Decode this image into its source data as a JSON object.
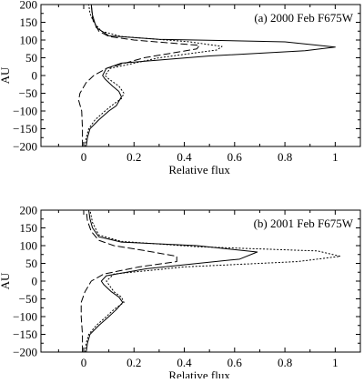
{
  "chart_data": [
    {
      "type": "line",
      "title": "(a) 2000 Feb F675W",
      "xlabel": "Relative flux",
      "ylabel": "AU",
      "xlim": [
        -0.17,
        1.1
      ],
      "ylim": [
        -200,
        200
      ],
      "xticks": [
        0,
        0.2,
        0.4,
        0.6,
        0.8,
        1
      ],
      "xtick_labels": [
        "0",
        "0.2",
        "0.4",
        "0.6",
        "0.8",
        "1"
      ],
      "yticks": [
        -200,
        -150,
        -100,
        -50,
        0,
        50,
        100,
        150,
        200
      ],
      "ytick_labels": [
        "−200",
        "−150",
        "−100",
        "−50",
        "0",
        "50",
        "100",
        "150",
        "200"
      ],
      "grid": false,
      "series": [
        {
          "style": "solid",
          "x": [
            0.01,
            0.015,
            0.025,
            0.06,
            0.1,
            0.13,
            0.15,
            0.14,
            0.115,
            0.085,
            0.075,
            0.09,
            0.15,
            0.5,
            0.88,
            1.0,
            0.8,
            0.3,
            0.1,
            0.05,
            0.035,
            0.03
          ],
          "y": [
            -200,
            -175,
            -150,
            -125,
            -100,
            -85,
            -60,
            -45,
            -30,
            -10,
            0,
            20,
            35,
            55,
            70,
            80,
            95,
            102,
            112,
            135,
            170,
            200
          ]
        },
        {
          "style": "dotted",
          "x": [
            0.005,
            0.01,
            0.02,
            0.045,
            0.085,
            0.12,
            0.15,
            0.16,
            0.14,
            0.1,
            0.085,
            0.105,
            0.3,
            0.53,
            0.55,
            0.42,
            0.15,
            0.07,
            0.04,
            0.025,
            0.02
          ],
          "y": [
            -200,
            -175,
            -150,
            -125,
            -100,
            -80,
            -65,
            -50,
            -30,
            -10,
            0,
            20,
            50,
            72,
            82,
            95,
            110,
            125,
            150,
            175,
            200
          ]
        },
        {
          "style": "dashed",
          "x": [
            -0.005,
            -0.005,
            -0.008,
            -0.02,
            -0.015,
            0.01,
            0.04,
            0.09,
            0.24,
            0.45,
            0.46,
            0.2,
            0.1,
            0.06,
            0.035,
            0.03
          ],
          "y": [
            -200,
            -150,
            -100,
            -70,
            -50,
            -20,
            0,
            20,
            50,
            75,
            85,
            100,
            110,
            125,
            160,
            200
          ]
        }
      ]
    },
    {
      "type": "line",
      "title": "(b) 2001 Feb F675W",
      "xlabel": "Relative flux",
      "ylabel": "AU",
      "xlim": [
        -0.17,
        1.1
      ],
      "ylim": [
        -200,
        200
      ],
      "xticks": [
        0,
        0.2,
        0.4,
        0.6,
        0.8,
        1
      ],
      "xtick_labels": [
        "0",
        "0.2",
        "0.4",
        "0.6",
        "0.8",
        "1"
      ],
      "yticks": [
        -200,
        -150,
        -100,
        -50,
        0,
        50,
        100,
        150,
        200
      ],
      "ytick_labels": [
        "−200",
        "−150",
        "−100",
        "−50",
        "0",
        "50",
        "100",
        "150",
        "200"
      ],
      "grid": false,
      "series": [
        {
          "style": "solid",
          "x": [
            0.01,
            0.015,
            0.025,
            0.06,
            0.1,
            0.13,
            0.155,
            0.14,
            0.11,
            0.08,
            0.07,
            0.09,
            0.25,
            0.62,
            0.69,
            0.45,
            0.15,
            0.06,
            0.035,
            0.025,
            0.02
          ],
          "y": [
            -200,
            -175,
            -150,
            -125,
            -100,
            -80,
            -60,
            -45,
            -30,
            -10,
            0,
            15,
            35,
            62,
            82,
            100,
            110,
            125,
            150,
            175,
            200
          ]
        },
        {
          "style": "dotted",
          "x": [
            0.005,
            0.01,
            0.02,
            0.05,
            0.09,
            0.12,
            0.16,
            0.15,
            0.12,
            0.1,
            0.09,
            0.12,
            0.4,
            0.85,
            1.02,
            0.93,
            0.45,
            0.15,
            0.06,
            0.035,
            0.025
          ],
          "y": [
            -200,
            -175,
            -150,
            -125,
            -100,
            -80,
            -60,
            -45,
            -30,
            -10,
            0,
            20,
            40,
            55,
            70,
            85,
            97,
            112,
            130,
            165,
            200
          ]
        },
        {
          "style": "dashed",
          "x": [
            -0.005,
            -0.005,
            -0.01,
            -0.01,
            0.005,
            0.03,
            0.08,
            0.22,
            0.37,
            0.37,
            0.25,
            0.12,
            0.06,
            0.03,
            0.015,
            0.01
          ],
          "y": [
            -200,
            -150,
            -100,
            -60,
            -30,
            0,
            20,
            40,
            55,
            70,
            85,
            100,
            115,
            140,
            170,
            200
          ]
        }
      ]
    }
  ]
}
